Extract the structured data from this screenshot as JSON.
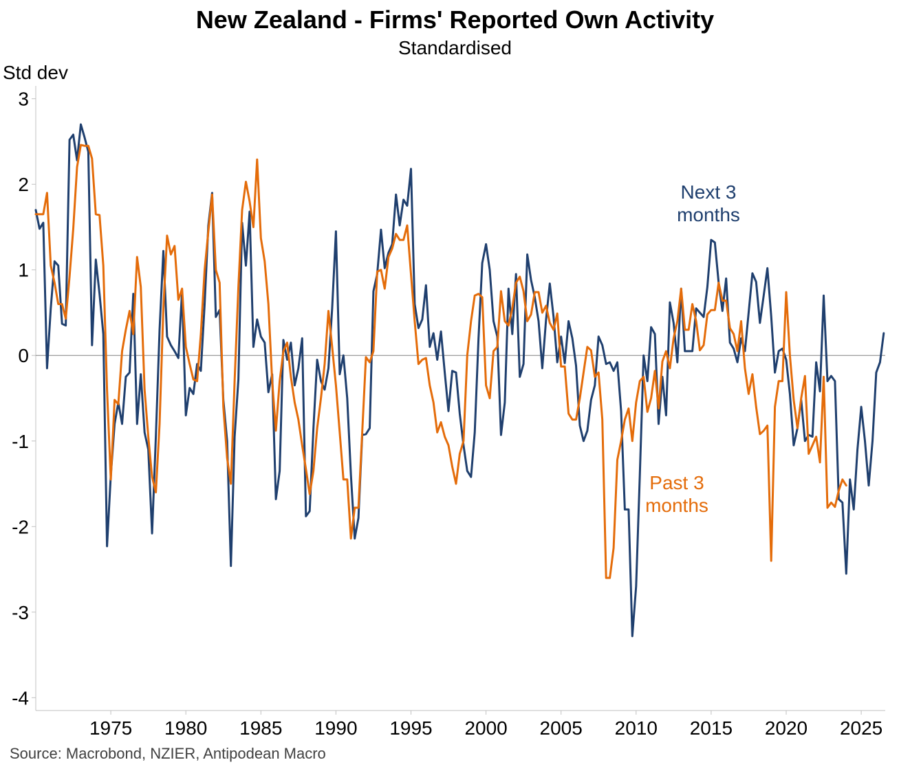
{
  "chart_data": {
    "type": "line",
    "title": "New Zealand - Firms' Reported Own Activity",
    "subtitle": "Standardised",
    "ylabel": "Std dev",
    "source": "Source: Macrobond, NZIER, Antipodean Macro",
    "xlim": [
      1970.0,
      2026.6
    ],
    "ylim": [
      -4.15,
      3.15
    ],
    "x_ticks": [
      1975,
      1980,
      1985,
      1990,
      1995,
      2000,
      2005,
      2010,
      2015,
      2020,
      2025
    ],
    "y_ticks": [
      3,
      2,
      1,
      0,
      -1,
      -2,
      -3,
      -4
    ],
    "annotations": [
      {
        "text_lines": [
          "Next 3",
          "months"
        ],
        "series": "Next 3 months"
      },
      {
        "text_lines": [
          "Past 3",
          "months"
        ],
        "series": "Past 3 months"
      }
    ],
    "series": [
      {
        "name": "Next 3 months",
        "color": "#1f3f6e",
        "x_start": 1970.0,
        "x_step": 0.25,
        "values": [
          1.7,
          1.48,
          1.55,
          -0.15,
          0.55,
          1.1,
          1.05,
          0.37,
          0.35,
          2.52,
          2.58,
          2.28,
          2.7,
          2.55,
          2.38,
          0.12,
          1.12,
          0.72,
          0.25,
          -2.23,
          -1.4,
          -0.8,
          -0.55,
          -0.8,
          -0.25,
          -0.2,
          0.72,
          -0.8,
          -0.22,
          -0.9,
          -1.1,
          -2.08,
          -0.95,
          0.3,
          1.22,
          0.22,
          0.12,
          0.05,
          -0.03,
          0.75,
          -0.7,
          -0.38,
          -0.45,
          -0.1,
          -0.18,
          0.6,
          1.52,
          1.9,
          0.45,
          0.53,
          -0.52,
          -1.0,
          -2.46,
          -0.95,
          -0.28,
          1.55,
          1.05,
          1.68,
          0.1,
          0.42,
          0.22,
          0.15,
          -0.43,
          -0.22,
          -1.68,
          -1.35,
          0.18,
          -0.05,
          0.15,
          -0.35,
          -0.15,
          0.2,
          -1.88,
          -1.82,
          -0.85,
          -0.05,
          -0.3,
          -0.4,
          -0.15,
          0.55,
          1.45,
          -0.22,
          0.0,
          -0.5,
          -1.4,
          -2.14,
          -1.9,
          -0.93,
          -0.92,
          -0.85,
          0.75,
          0.95,
          1.47,
          1.02,
          1.2,
          1.3,
          1.88,
          1.52,
          1.82,
          1.75,
          2.18,
          0.6,
          0.32,
          0.42,
          0.82,
          0.1,
          0.26,
          -0.05,
          0.28,
          -0.2,
          -0.65,
          -0.18,
          -0.2,
          -0.68,
          -1.05,
          -1.35,
          -1.42,
          -0.9,
          0.2,
          1.08,
          1.3,
          1.0,
          0.4,
          0.22,
          -0.93,
          -0.55,
          0.78,
          0.25,
          0.95,
          -0.25,
          -0.1,
          1.18,
          0.88,
          0.68,
          0.4,
          -0.15,
          0.42,
          0.84,
          0.45,
          -0.08,
          0.22,
          -0.09,
          0.4,
          0.2,
          -0.12,
          -0.82,
          -1.0,
          -0.88,
          -0.52,
          -0.35,
          0.22,
          0.12,
          -0.1,
          -0.08,
          -0.18,
          -0.08,
          -0.65,
          -1.8,
          -1.8,
          -3.28,
          -2.7,
          -1.4,
          0.0,
          -0.3,
          0.33,
          0.25,
          -0.8,
          -0.25,
          -0.7,
          0.62,
          0.38,
          -0.08,
          0.78,
          0.05,
          0.05,
          0.05,
          0.55,
          0.5,
          0.45,
          0.8,
          1.35,
          1.32,
          0.85,
          0.52,
          0.9,
          0.15,
          0.08,
          -0.08,
          0.2,
          0.05,
          0.5,
          0.96,
          0.86,
          0.38,
          0.7,
          1.02,
          0.46,
          -0.2,
          0.05,
          0.08,
          -0.05,
          -0.45,
          -1.05,
          -0.85,
          -0.52,
          -1.0,
          -0.93,
          -0.95,
          -0.08,
          -0.42,
          0.7,
          -0.3,
          -0.24,
          -0.3,
          -1.68,
          -1.72,
          -2.55,
          -1.45,
          -1.8,
          -1.1,
          -0.6,
          -1.0,
          -1.52,
          -1.0,
          -0.2,
          -0.08,
          0.26
        ]
      },
      {
        "name": "Past 3 months",
        "color": "#e46c0a",
        "x_start": 1970.0,
        "x_step": 0.25,
        "values": [
          1.65,
          1.65,
          1.65,
          1.9,
          1.05,
          0.85,
          0.6,
          0.6,
          0.43,
          0.92,
          1.48,
          2.2,
          2.46,
          2.45,
          2.45,
          2.3,
          1.65,
          1.64,
          1.05,
          -0.4,
          -1.45,
          -0.52,
          -0.57,
          0.05,
          0.3,
          0.52,
          0.25,
          1.15,
          0.8,
          -0.4,
          -0.95,
          -1.42,
          -1.6,
          -0.8,
          0.55,
          1.4,
          1.18,
          1.28,
          0.65,
          0.78,
          0.1,
          -0.1,
          -0.28,
          -0.3,
          0.25,
          1.0,
          1.45,
          1.88,
          1.0,
          0.85,
          -0.6,
          -1.2,
          -1.5,
          -0.3,
          0.8,
          1.7,
          2.03,
          1.8,
          1.5,
          2.29,
          1.37,
          1.1,
          0.6,
          -0.3,
          -0.88,
          -0.3,
          0.05,
          0.15,
          -0.25,
          -0.55,
          -0.75,
          -1.05,
          -1.33,
          -1.62,
          -1.35,
          -0.85,
          -0.5,
          -0.1,
          0.52,
          0.1,
          -0.35,
          -0.9,
          -1.45,
          -1.45,
          -2.14,
          -1.78,
          -1.78,
          -0.9,
          -0.02,
          -0.08,
          0.05,
          0.98,
          1.0,
          0.78,
          1.15,
          1.25,
          1.42,
          1.35,
          1.35,
          1.52,
          0.95,
          0.4,
          -0.1,
          -0.05,
          -0.03,
          -0.35,
          -0.55,
          -0.9,
          -0.78,
          -0.95,
          -1.05,
          -1.3,
          -1.5,
          -1.15,
          -1.0,
          0.0,
          0.4,
          0.7,
          0.72,
          0.68,
          -0.35,
          -0.5,
          0.05,
          0.1,
          0.75,
          0.4,
          0.35,
          0.55,
          0.85,
          0.92,
          0.75,
          0.4,
          0.48,
          0.74,
          0.74,
          0.5,
          0.58,
          0.38,
          0.3,
          0.49,
          -0.13,
          -0.13,
          -0.68,
          -0.75,
          -0.75,
          -0.5,
          -0.2,
          0.1,
          0.06,
          -0.25,
          -0.2,
          -0.75,
          -2.6,
          -2.6,
          -2.25,
          -1.22,
          -1.0,
          -0.75,
          -0.62,
          -1.0,
          -0.55,
          -0.3,
          -0.25,
          -0.66,
          -0.5,
          -0.18,
          -0.62,
          -0.07,
          0.05,
          -0.15,
          0.2,
          0.4,
          0.78,
          0.3,
          0.3,
          0.6,
          0.4,
          0.06,
          0.12,
          0.48,
          0.53,
          0.53,
          0.85,
          0.64,
          0.64,
          0.32,
          0.25,
          0.05,
          0.4,
          -0.15,
          -0.45,
          -0.22,
          -0.6,
          -0.92,
          -0.88,
          -0.82,
          -2.4,
          -0.6,
          -0.3,
          -0.3,
          0.74,
          0.0,
          -0.52,
          -0.85,
          -0.5,
          -0.24,
          -1.15,
          -1.05,
          -0.95,
          -1.25,
          -0.25,
          -1.78,
          -1.72,
          -1.77,
          -1.58,
          -1.45,
          -1.52
        ]
      }
    ]
  }
}
